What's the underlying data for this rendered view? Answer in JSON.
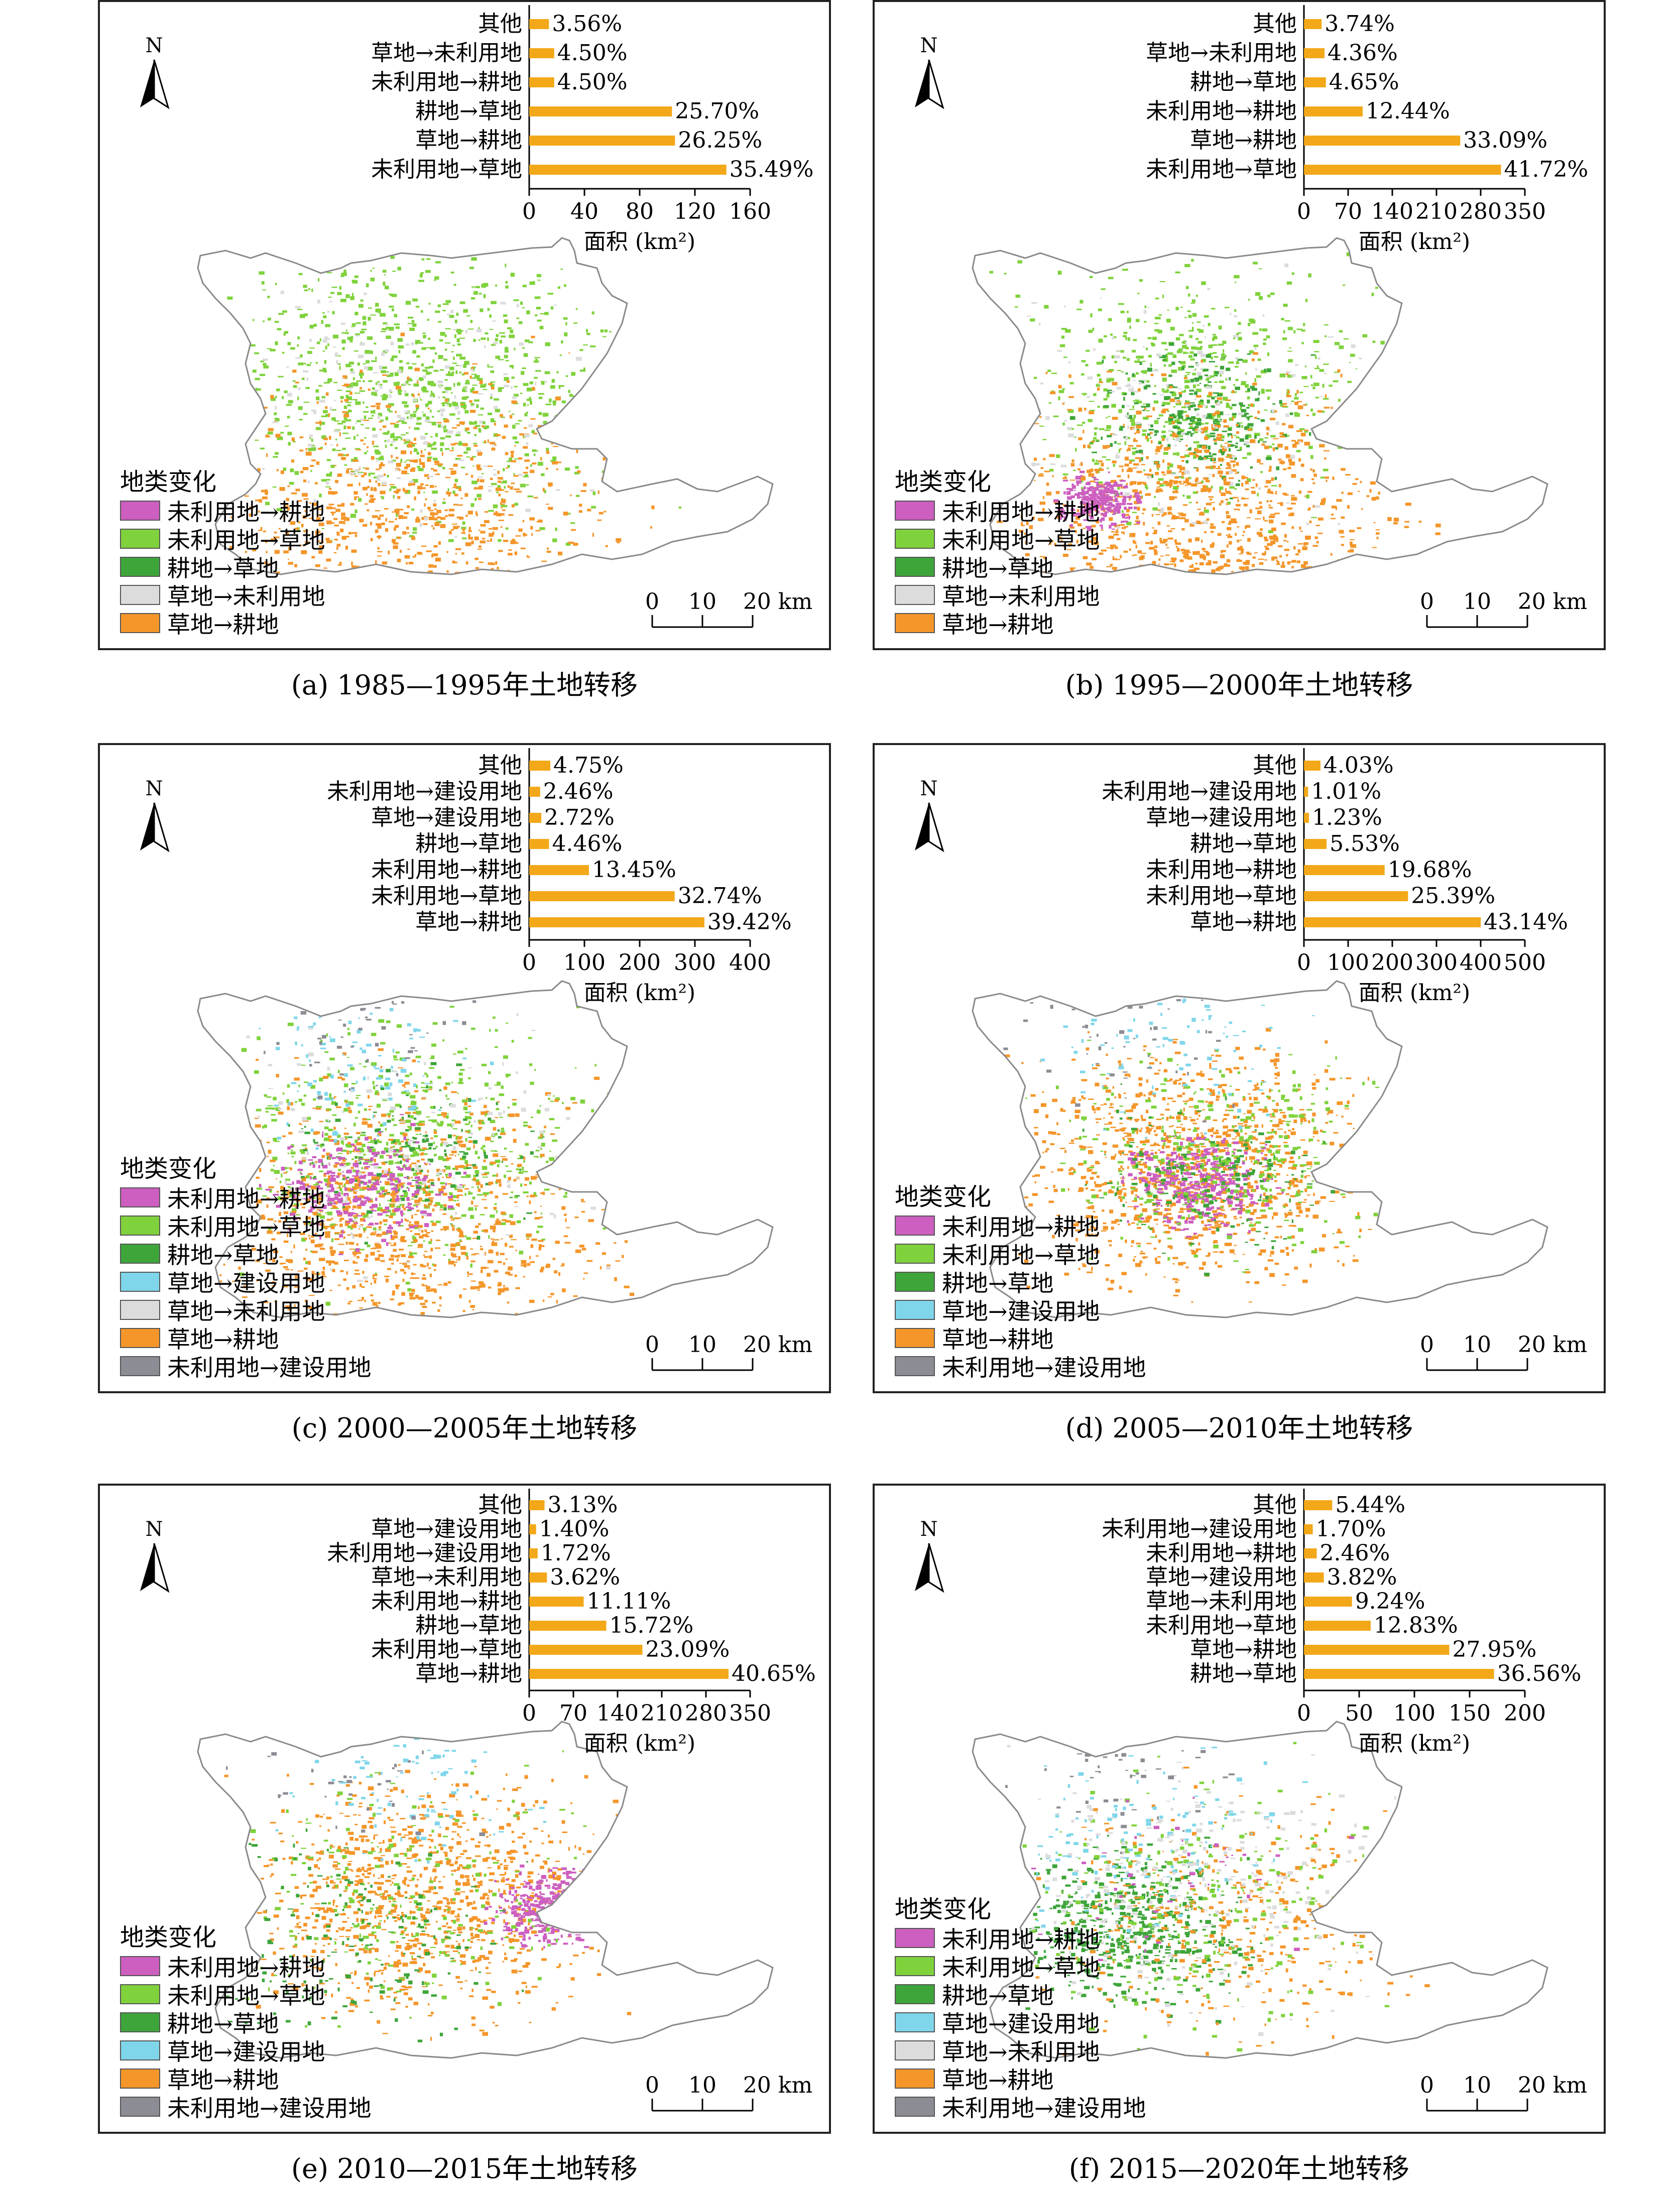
{
  "legend_colors": {
    "未利用地→耕地": "#cc5fbf",
    "未利用地→草地": "#7fd23c",
    "耕地→草地": "#3ea53a",
    "草地→建设用地": "#7fd6ea",
    "草地→未利用地": "#dcdcdc",
    "草地→耕地": "#f4962a",
    "未利用地→建设用地": "#8c8c94"
  },
  "bar_color": "#f2a818",
  "north_label": "N",
  "scale": {
    "ticks": [
      "0",
      "10",
      "20 km"
    ]
  },
  "legend_title": "地类变化",
  "panels": [
    {
      "caption": "(a) 1985—1995年土地转移",
      "legend": [
        "未利用地→耕地",
        "未利用地→草地",
        "耕地→草地",
        "草地→未利用地",
        "草地→耕地"
      ],
      "chart_data": {
        "type": "bar",
        "orientation": "horizontal",
        "xlabel": "面积 (km²)",
        "xlim": [
          0,
          160
        ],
        "xticks": [
          "0",
          "40",
          "80",
          "120",
          "160"
        ],
        "categories": [
          "其他",
          "草地→未利用地",
          "未利用地→耕地",
          "耕地→草地",
          "草地→耕地",
          "未利用地→草地"
        ],
        "values": [
          14.3,
          18.1,
          18.1,
          103.4,
          105.6,
          142.8
        ],
        "labels": [
          "3.56%",
          "4.50%",
          "4.50%",
          "25.70%",
          "26.25%",
          "35.49%"
        ]
      }
    },
    {
      "caption": "(b) 1995—2000年土地转移",
      "legend": [
        "未利用地→耕地",
        "未利用地→草地",
        "耕地→草地",
        "草地→未利用地",
        "草地→耕地"
      ],
      "chart_data": {
        "type": "bar",
        "orientation": "horizontal",
        "xlabel": "面积 (km²)",
        "xlim": [
          0,
          350
        ],
        "xticks": [
          "0",
          "70",
          "140",
          "210",
          "280",
          "350"
        ],
        "categories": [
          "其他",
          "草地→未利用地",
          "耕地→草地",
          "未利用地→耕地",
          "草地→耕地",
          "未利用地→草地"
        ],
        "values": [
          28.0,
          32.6,
          34.8,
          93.1,
          247.6,
          312.2
        ],
        "labels": [
          "3.74%",
          "4.36%",
          "4.65%",
          "12.44%",
          "33.09%",
          "41.72%"
        ]
      }
    },
    {
      "caption": "(c) 2000—2005年土地转移",
      "legend": [
        "未利用地→耕地",
        "未利用地→草地",
        "耕地→草地",
        "草地→建设用地",
        "草地→未利用地",
        "草地→耕地",
        "未利用地→建设用地"
      ],
      "chart_data": {
        "type": "bar",
        "orientation": "horizontal",
        "xlabel": "面积 (km²)",
        "xlim": [
          0,
          400
        ],
        "xticks": [
          "0",
          "100",
          "200",
          "300",
          "400"
        ],
        "categories": [
          "其他",
          "未利用地→建设用地",
          "草地→建设用地",
          "耕地→草地",
          "未利用地→耕地",
          "未利用地→草地",
          "草地→耕地"
        ],
        "values": [
          38.2,
          19.8,
          21.9,
          35.9,
          108.2,
          263.4,
          317.2
        ],
        "labels": [
          "4.75%",
          "2.46%",
          "2.72%",
          "4.46%",
          "13.45%",
          "32.74%",
          "39.42%"
        ]
      }
    },
    {
      "caption": "(d) 2005—2010年土地转移",
      "legend": [
        "未利用地→耕地",
        "未利用地→草地",
        "耕地→草地",
        "草地→建设用地",
        "草地→耕地",
        "未利用地→建设用地"
      ],
      "chart_data": {
        "type": "bar",
        "orientation": "horizontal",
        "xlabel": "面积 (km²)",
        "xlim": [
          0,
          500
        ],
        "xticks": [
          "0",
          "100",
          "200",
          "300",
          "400",
          "500"
        ],
        "categories": [
          "其他",
          "未利用地→建设用地",
          "草地→建设用地",
          "耕地→草地",
          "未利用地→耕地",
          "未利用地→草地",
          "草地→耕地"
        ],
        "values": [
          37.4,
          9.4,
          11.4,
          51.3,
          182.6,
          235.6,
          400.2
        ],
        "labels": [
          "4.03%",
          "1.01%",
          "1.23%",
          "5.53%",
          "19.68%",
          "25.39%",
          "43.14%"
        ]
      }
    },
    {
      "caption": "(e) 2010—2015年土地转移",
      "legend": [
        "未利用地→耕地",
        "未利用地→草地",
        "耕地→草地",
        "草地→建设用地",
        "草地→耕地",
        "未利用地→建设用地"
      ],
      "chart_data": {
        "type": "bar",
        "orientation": "horizontal",
        "xlabel": "面积 (km²)",
        "xlim": [
          0,
          350
        ],
        "xticks": [
          "0",
          "70",
          "140",
          "210",
          "280",
          "350"
        ],
        "categories": [
          "其他",
          "草地→建设用地",
          "未利用地→建设用地",
          "草地→未利用地",
          "未利用地→耕地",
          "耕地→草地",
          "未利用地→草地",
          "草地→耕地"
        ],
        "values": [
          24.3,
          10.9,
          13.4,
          28.1,
          86.3,
          122.1,
          179.4,
          315.8
        ],
        "labels": [
          "3.13%",
          "1.40%",
          "1.72%",
          "3.62%",
          "11.11%",
          "15.72%",
          "23.09%",
          "40.65%"
        ]
      }
    },
    {
      "caption": "(f) 2015—2020年土地转移",
      "legend": [
        "未利用地→耕地",
        "未利用地→草地",
        "耕地→草地",
        "草地→建设用地",
        "草地→未利用地",
        "草地→耕地",
        "未利用地→建设用地"
      ],
      "chart_data": {
        "type": "bar",
        "orientation": "horizontal",
        "xlabel": "面积 (km²)",
        "xlim": [
          0,
          200
        ],
        "xticks": [
          "0",
          "50",
          "100",
          "150",
          "200"
        ],
        "categories": [
          "其他",
          "未利用地→建设用地",
          "未利用地→耕地",
          "草地→建设用地",
          "草地→未利用地",
          "未利用地→草地",
          "草地→耕地",
          "耕地→草地"
        ],
        "values": [
          25.6,
          8.0,
          11.6,
          18.0,
          43.5,
          60.4,
          131.6,
          172.1
        ],
        "labels": [
          "5.44%",
          "1.70%",
          "2.46%",
          "3.82%",
          "9.24%",
          "12.83%",
          "27.95%",
          "36.56%"
        ]
      }
    }
  ]
}
